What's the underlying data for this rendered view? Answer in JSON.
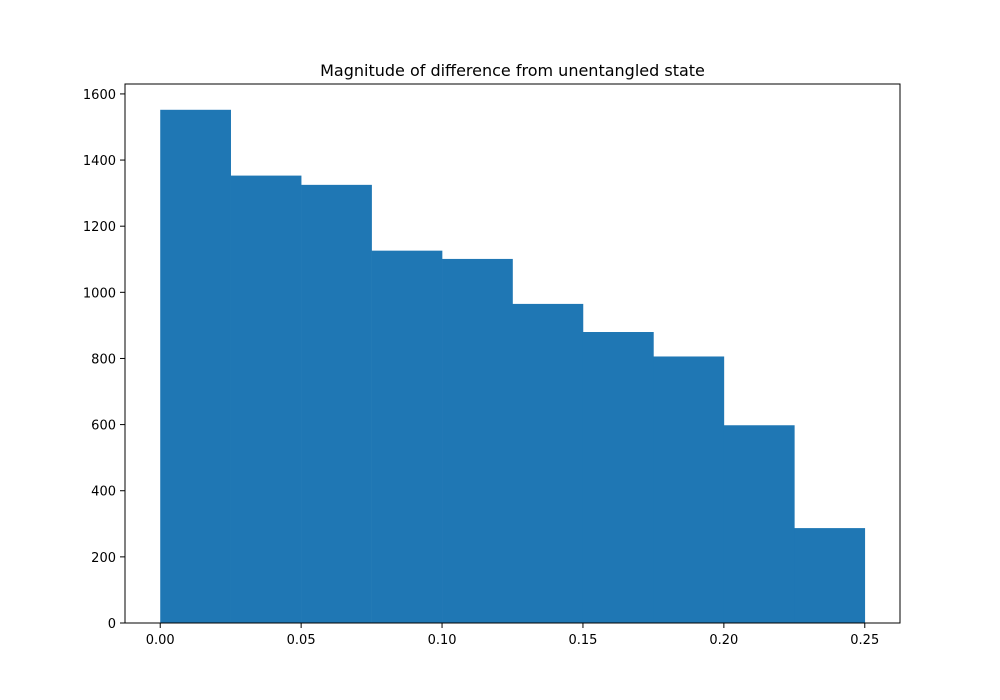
{
  "chart_data": {
    "type": "bar",
    "subtype": "histogram",
    "title": "Magnitude of difference from unentangled state",
    "xlabel": "",
    "ylabel": "",
    "bin_edges": [
      0.0,
      0.025,
      0.05,
      0.075,
      0.1,
      0.125,
      0.15,
      0.175,
      0.2,
      0.225,
      0.25
    ],
    "values": [
      1552,
      1353,
      1325,
      1126,
      1101,
      965,
      880,
      806,
      598,
      287
    ],
    "xlim": [
      -0.0125,
      0.2625
    ],
    "ylim": [
      0,
      1630
    ],
    "xticks": [
      0.0,
      0.05,
      0.1,
      0.15,
      0.2,
      0.25
    ],
    "xtick_labels": [
      "0.00",
      "0.05",
      "0.10",
      "0.15",
      "0.20",
      "0.25"
    ],
    "yticks": [
      0,
      200,
      400,
      600,
      800,
      1000,
      1200,
      1400,
      1600
    ],
    "ytick_labels": [
      "0",
      "200",
      "400",
      "600",
      "800",
      "1000",
      "1200",
      "1400",
      "1600"
    ],
    "bar_color": "#1f77b4",
    "grid": false,
    "legend": "none"
  }
}
